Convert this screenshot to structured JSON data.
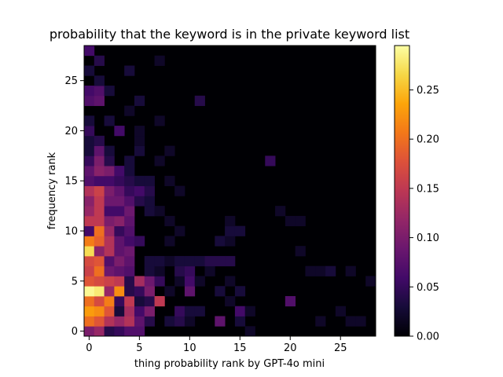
{
  "chart_data": {
    "type": "heatmap",
    "title": "probability that the keyword is in the private keyword list",
    "xlabel": "thing probability rank by GPT-4o mini",
    "ylabel": "frequency rank",
    "x_range": [
      0,
      29
    ],
    "y_range": [
      0,
      29
    ],
    "x_ticks": [
      "0",
      "5",
      "10",
      "15",
      "20",
      "25"
    ],
    "y_ticks": [
      "0",
      "5",
      "10",
      "15",
      "20",
      "25"
    ],
    "colormap": "inferno",
    "colorbar": {
      "vmin": 0,
      "vmax": 0.295,
      "ticks": [
        "0.00",
        "0.05",
        "0.10",
        "0.15",
        "0.20",
        "0.25"
      ]
    },
    "cells": [
      [
        0,
        0,
        0.1
      ],
      [
        1,
        0,
        0.12
      ],
      [
        2,
        0,
        0.04
      ],
      [
        3,
        0,
        0.05
      ],
      [
        4,
        0,
        0.07
      ],
      [
        5,
        0,
        0.07
      ],
      [
        16,
        0,
        0.02
      ],
      [
        0,
        1,
        0.2
      ],
      [
        1,
        1,
        0.18
      ],
      [
        2,
        1,
        0.14
      ],
      [
        3,
        1,
        0.12
      ],
      [
        4,
        1,
        0.14
      ],
      [
        5,
        1,
        0.08
      ],
      [
        6,
        1,
        0.04
      ],
      [
        8,
        1,
        0.03
      ],
      [
        9,
        1,
        0.04
      ],
      [
        10,
        1,
        0.02
      ],
      [
        13,
        1,
        0.08
      ],
      [
        15,
        1,
        0.03
      ],
      [
        23,
        1,
        0.02
      ],
      [
        26,
        1,
        0.02
      ],
      [
        27,
        1,
        0.02
      ],
      [
        0,
        2,
        0.23
      ],
      [
        1,
        2,
        0.22
      ],
      [
        2,
        2,
        0.18
      ],
      [
        3,
        2,
        0.03
      ],
      [
        4,
        2,
        0.13
      ],
      [
        5,
        2,
        0.06
      ],
      [
        6,
        2,
        0.1
      ],
      [
        9,
        2,
        0.05
      ],
      [
        10,
        2,
        0.03
      ],
      [
        11,
        2,
        0.03
      ],
      [
        15,
        2,
        0.06
      ],
      [
        16,
        2,
        0.02
      ],
      [
        25,
        2,
        0.02
      ],
      [
        0,
        3,
        0.2
      ],
      [
        1,
        3,
        0.17
      ],
      [
        2,
        3,
        0.21
      ],
      [
        3,
        3,
        0.05
      ],
      [
        4,
        3,
        0.15
      ],
      [
        5,
        3,
        0.03
      ],
      [
        6,
        3,
        0.04
      ],
      [
        7,
        3,
        0.15
      ],
      [
        14,
        3,
        0.02
      ],
      [
        20,
        3,
        0.07
      ],
      [
        0,
        4,
        0.29
      ],
      [
        1,
        4,
        0.28
      ],
      [
        2,
        4,
        0.12
      ],
      [
        3,
        4,
        0.22
      ],
      [
        4,
        4,
        0.04
      ],
      [
        5,
        4,
        0.05
      ],
      [
        6,
        4,
        0.1
      ],
      [
        8,
        4,
        0.02
      ],
      [
        10,
        4,
        0.08
      ],
      [
        13,
        4,
        0.03
      ],
      [
        15,
        4,
        0.03
      ],
      [
        0,
        5,
        0.18
      ],
      [
        1,
        5,
        0.17
      ],
      [
        2,
        5,
        0.16
      ],
      [
        3,
        5,
        0.15
      ],
      [
        4,
        5,
        0.04
      ],
      [
        5,
        5,
        0.13
      ],
      [
        6,
        5,
        0.09
      ],
      [
        7,
        5,
        0.05
      ],
      [
        9,
        5,
        0.02
      ],
      [
        10,
        5,
        0.06
      ],
      [
        11,
        5,
        0.02
      ],
      [
        14,
        5,
        0.02
      ],
      [
        28,
        5,
        0.02
      ],
      [
        0,
        6,
        0.16
      ],
      [
        1,
        6,
        0.2
      ],
      [
        2,
        6,
        0.09
      ],
      [
        3,
        6,
        0.08
      ],
      [
        4,
        6,
        0.07
      ],
      [
        6,
        6,
        0.03
      ],
      [
        7,
        6,
        0.02
      ],
      [
        9,
        6,
        0.04
      ],
      [
        10,
        6,
        0.05
      ],
      [
        12,
        6,
        0.02
      ],
      [
        22,
        6,
        0.02
      ],
      [
        23,
        6,
        0.02
      ],
      [
        24,
        6,
        0.03
      ],
      [
        26,
        6,
        0.02
      ],
      [
        0,
        7,
        0.17
      ],
      [
        1,
        7,
        0.18
      ],
      [
        2,
        7,
        0.07
      ],
      [
        3,
        7,
        0.1
      ],
      [
        4,
        7,
        0.08
      ],
      [
        6,
        7,
        0.03
      ],
      [
        7,
        7,
        0.03
      ],
      [
        8,
        7,
        0.02
      ],
      [
        9,
        7,
        0.03
      ],
      [
        10,
        7,
        0.03
      ],
      [
        11,
        7,
        0.03
      ],
      [
        12,
        7,
        0.04
      ],
      [
        13,
        7,
        0.04
      ],
      [
        14,
        7,
        0.04
      ],
      [
        0,
        8,
        0.27
      ],
      [
        1,
        8,
        0.11
      ],
      [
        2,
        8,
        0.14
      ],
      [
        3,
        8,
        0.08
      ],
      [
        4,
        8,
        0.09
      ],
      [
        21,
        8,
        0.02
      ],
      [
        0,
        9,
        0.21
      ],
      [
        1,
        9,
        0.19
      ],
      [
        2,
        9,
        0.14
      ],
      [
        3,
        9,
        0.08
      ],
      [
        4,
        9,
        0.06
      ],
      [
        5,
        9,
        0.05
      ],
      [
        8,
        9,
        0.02
      ],
      [
        13,
        9,
        0.03
      ],
      [
        14,
        9,
        0.02
      ],
      [
        0,
        10,
        0.06
      ],
      [
        1,
        10,
        0.2
      ],
      [
        2,
        10,
        0.12
      ],
      [
        3,
        10,
        0.05
      ],
      [
        4,
        10,
        0.07
      ],
      [
        9,
        10,
        0.02
      ],
      [
        14,
        10,
        0.03
      ],
      [
        15,
        10,
        0.03
      ],
      [
        0,
        11,
        0.15
      ],
      [
        1,
        11,
        0.15
      ],
      [
        2,
        11,
        0.1
      ],
      [
        3,
        11,
        0.11
      ],
      [
        4,
        11,
        0.08
      ],
      [
        8,
        11,
        0.02
      ],
      [
        14,
        11,
        0.02
      ],
      [
        20,
        11,
        0.02
      ],
      [
        21,
        11,
        0.02
      ],
      [
        0,
        12,
        0.12
      ],
      [
        1,
        12,
        0.15
      ],
      [
        2,
        12,
        0.06
      ],
      [
        3,
        12,
        0.06
      ],
      [
        4,
        12,
        0.09
      ],
      [
        6,
        12,
        0.03
      ],
      [
        7,
        12,
        0.02
      ],
      [
        19,
        12,
        0.02
      ],
      [
        0,
        13,
        0.11
      ],
      [
        1,
        13,
        0.15
      ],
      [
        2,
        13,
        0.09
      ],
      [
        3,
        13,
        0.09
      ],
      [
        4,
        13,
        0.07
      ],
      [
        5,
        13,
        0.04
      ],
      [
        6,
        13,
        0.03
      ],
      [
        0,
        14,
        0.14
      ],
      [
        1,
        14,
        0.16
      ],
      [
        2,
        14,
        0.1
      ],
      [
        3,
        14,
        0.08
      ],
      [
        4,
        14,
        0.05
      ],
      [
        5,
        14,
        0.06
      ],
      [
        6,
        14,
        0.04
      ],
      [
        9,
        14,
        0.02
      ],
      [
        0,
        15,
        0.07
      ],
      [
        1,
        15,
        0.06
      ],
      [
        2,
        15,
        0.06
      ],
      [
        3,
        15,
        0.05
      ],
      [
        4,
        15,
        0.04
      ],
      [
        5,
        15,
        0.03
      ],
      [
        6,
        15,
        0.03
      ],
      [
        8,
        15,
        0.02
      ],
      [
        0,
        16,
        0.08
      ],
      [
        1,
        16,
        0.11
      ],
      [
        2,
        16,
        0.1
      ],
      [
        3,
        16,
        0.06
      ],
      [
        4,
        16,
        0.03
      ],
      [
        0,
        17,
        0.05
      ],
      [
        1,
        17,
        0.1
      ],
      [
        2,
        17,
        0.04
      ],
      [
        4,
        17,
        0.03
      ],
      [
        7,
        17,
        0.02
      ],
      [
        18,
        17,
        0.05
      ],
      [
        0,
        18,
        0.03
      ],
      [
        1,
        18,
        0.08
      ],
      [
        2,
        18,
        0.03
      ],
      [
        5,
        18,
        0.03
      ],
      [
        8,
        18,
        0.02
      ],
      [
        0,
        19,
        0.03
      ],
      [
        1,
        19,
        0.04
      ],
      [
        5,
        19,
        0.02
      ],
      [
        0,
        20,
        0.05
      ],
      [
        3,
        20,
        0.06
      ],
      [
        5,
        20,
        0.02
      ],
      [
        0,
        21,
        0.03
      ],
      [
        2,
        21,
        0.03
      ],
      [
        7,
        21,
        0.02
      ],
      [
        4,
        22,
        0.02
      ],
      [
        0,
        23,
        0.07
      ],
      [
        1,
        23,
        0.08
      ],
      [
        5,
        23,
        0.03
      ],
      [
        11,
        23,
        0.04
      ],
      [
        0,
        24,
        0.06
      ],
      [
        1,
        24,
        0.07
      ],
      [
        2,
        24,
        0.03
      ],
      [
        1,
        25,
        0.03
      ],
      [
        0,
        26,
        0.03
      ],
      [
        4,
        26,
        0.03
      ],
      [
        1,
        27,
        0.04
      ],
      [
        7,
        27,
        0.02
      ],
      [
        0,
        28,
        0.06
      ]
    ]
  }
}
